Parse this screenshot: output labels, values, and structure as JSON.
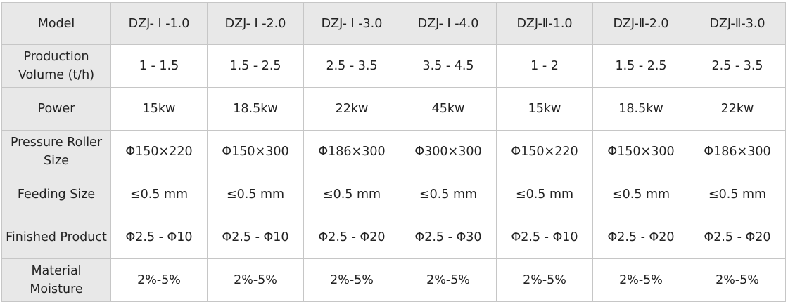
{
  "table": {
    "header": [
      "Model",
      "DZJ- Ⅰ -1.0",
      "DZJ- Ⅰ -2.0",
      "DZJ- Ⅰ -3.0",
      "DZJ- Ⅰ -4.0",
      "DZJ-Ⅱ-1.0",
      "DZJ-Ⅱ-2.0",
      "DZJ-Ⅱ-3.0"
    ],
    "rows": [
      {
        "label": "Production Volume (t/h)",
        "cells": [
          "1 - 1.5",
          "1.5 - 2.5",
          "2.5 - 3.5",
          "3.5 - 4.5",
          "1 - 2",
          "1.5 - 2.5",
          "2.5 - 3.5"
        ]
      },
      {
        "label": "Power",
        "cells": [
          "15kw",
          "18.5kw",
          "22kw",
          "45kw",
          "15kw",
          "18.5kw",
          "22kw"
        ]
      },
      {
        "label": "Pressure Roller Size",
        "cells": [
          "Φ150×220",
          "Φ150×300",
          "Φ186×300",
          "Φ300×300",
          "Φ150×220",
          "Φ150×300",
          "Φ186×300"
        ]
      },
      {
        "label": "Feeding Size",
        "cells": [
          "≤0.5 mm",
          "≤0.5 mm",
          "≤0.5 mm",
          "≤0.5 mm",
          "≤0.5 mm",
          "≤0.5 mm",
          "≤0.5 mm"
        ]
      },
      {
        "label": "Finished Product",
        "cells": [
          "Φ2.5 - Φ10",
          "Φ2.5 - Φ10",
          "Φ2.5 - Φ20",
          "Φ2.5 - Φ30",
          "Φ2.5 - Φ10",
          "Φ2.5 - Φ20",
          "Φ2.5 - Φ20"
        ]
      },
      {
        "label": "Material Moisture",
        "cells": [
          "2%-5%",
          "2%-5%",
          "2%-5%",
          "2%-5%",
          "2%-5%",
          "2%-5%",
          "2%-5%"
        ]
      }
    ]
  },
  "colors": {
    "header_bg": "#e8e8e8",
    "border": "#c6c6c6",
    "text": "#222222"
  }
}
